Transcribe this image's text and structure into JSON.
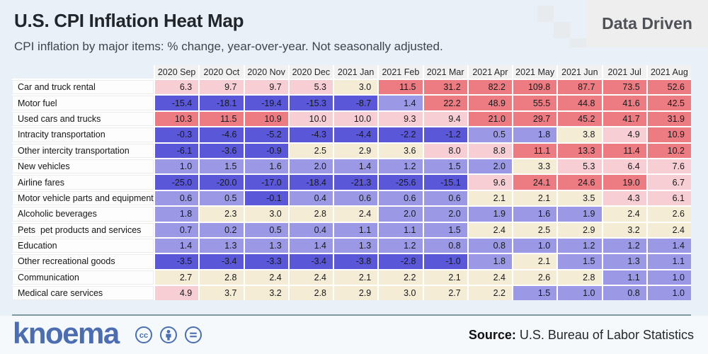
{
  "header": {
    "title": "U.S. CPI Inflation Heat Map",
    "subtitle": "CPI inflation by major items: % change, year-over-year. Not seasonally adjusted.",
    "badge": "Data Driven"
  },
  "chart_data": {
    "type": "heatmap",
    "title": "U.S. CPI Inflation Heat Map",
    "subtitle": "CPI inflation by major items: % change, year-over-year. Not seasonally adjusted.",
    "unit": "% change, year-over-year",
    "columns": [
      "2020 Sep",
      "2020 Oct",
      "2020 Nov",
      "2020 Dec",
      "2021 Jan",
      "2021 Feb",
      "2021 Mar",
      "2021 Apr",
      "2021 May",
      "2021 Jun",
      "2021 Jul",
      "2021 Aug"
    ],
    "rows": [
      {
        "label": "Car and truck rental",
        "values": [
          6.3,
          9.7,
          9.7,
          5.3,
          3.0,
          11.5,
          31.2,
          82.2,
          109.8,
          87.7,
          73.5,
          52.6
        ]
      },
      {
        "label": "Motor fuel",
        "values": [
          -15.4,
          -18.1,
          -19.4,
          -15.3,
          -8.7,
          1.4,
          22.2,
          48.9,
          55.5,
          44.8,
          41.6,
          42.5
        ]
      },
      {
        "label": "Used cars and trucks",
        "values": [
          10.3,
          11.5,
          10.9,
          10.0,
          10.0,
          9.3,
          9.4,
          21.0,
          29.7,
          45.2,
          41.7,
          31.9
        ]
      },
      {
        "label": "Intracity transportation",
        "values": [
          -0.3,
          -4.6,
          -5.2,
          -4.3,
          -4.4,
          -2.2,
          -1.2,
          0.5,
          1.8,
          3.8,
          4.9,
          10.9
        ]
      },
      {
        "label": "Other intercity transportation",
        "values": [
          -6.1,
          -3.6,
          -0.9,
          2.5,
          2.9,
          3.6,
          8.0,
          8.8,
          11.1,
          13.3,
          11.4,
          10.2
        ]
      },
      {
        "label": "New vehicles",
        "values": [
          1.0,
          1.5,
          1.6,
          2.0,
          1.4,
          1.2,
          1.5,
          2.0,
          3.3,
          5.3,
          6.4,
          7.6
        ]
      },
      {
        "label": "Airline fares",
        "values": [
          -25.0,
          -20.0,
          -17.0,
          -18.4,
          -21.3,
          -25.6,
          -15.1,
          9.6,
          24.1,
          24.6,
          19.0,
          6.7
        ]
      },
      {
        "label": "Motor vehicle parts and equipment",
        "values": [
          0.6,
          0.5,
          -0.1,
          0.4,
          0.6,
          0.6,
          0.6,
          2.1,
          2.1,
          3.5,
          4.3,
          6.1
        ]
      },
      {
        "label": "Alcoholic beverages",
        "values": [
          1.8,
          2.3,
          3.0,
          2.8,
          2.4,
          2.0,
          2.0,
          1.9,
          1.6,
          1.9,
          2.4,
          2.6
        ]
      },
      {
        "label": "Pets  pet products and services",
        "values": [
          0.7,
          0.2,
          0.5,
          0.4,
          1.1,
          1.1,
          1.5,
          2.4,
          2.5,
          2.9,
          3.2,
          2.4
        ]
      },
      {
        "label": "Education",
        "values": [
          1.4,
          1.3,
          1.3,
          1.4,
          1.3,
          1.2,
          0.8,
          0.8,
          1.0,
          1.2,
          1.2,
          1.4
        ]
      },
      {
        "label": "Other recreational goods",
        "values": [
          -3.5,
          -3.4,
          -3.3,
          -3.4,
          -3.8,
          -2.8,
          -1.0,
          1.8,
          2.1,
          1.5,
          1.3,
          1.1
        ]
      },
      {
        "label": "Communication",
        "values": [
          2.7,
          2.8,
          2.4,
          2.4,
          2.1,
          2.2,
          2.1,
          2.4,
          2.6,
          2.8,
          1.1,
          1.0
        ]
      },
      {
        "label": "Medical care services",
        "values": [
          4.9,
          3.7,
          3.2,
          2.8,
          2.9,
          3.0,
          2.7,
          2.2,
          1.5,
          1.0,
          0.8,
          1.0
        ]
      }
    ],
    "color_scale": {
      "negative": "#5a57d8",
      "low_0_to_2": "#9b99e6",
      "mid_2_to_4": "#f5ecd5",
      "high_4_to_10": "#f6ced3",
      "very_high_over_10": "#ec7c82",
      "header_bg": "#f1f1f1"
    },
    "legend_position": "none",
    "grid": false
  },
  "footer": {
    "logo": "knoema",
    "cc_icons": [
      "cc-icon",
      "attribution-icon",
      "no-derivatives-icon"
    ],
    "source_label": "Source:",
    "source_text": " U.S. Bureau of Labor Statistics",
    "brand_color": "#4c6eb1"
  }
}
